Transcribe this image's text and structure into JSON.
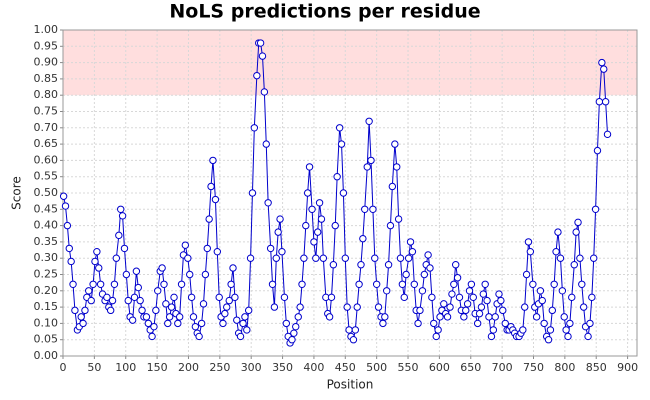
{
  "chart_data": {
    "type": "line",
    "title": "NoLS predictions per residue",
    "x_label": "Position",
    "y_label": "Score",
    "xlim": [
      0,
      915
    ],
    "ylim": [
      0,
      1
    ],
    "xticks": [
      0,
      50,
      100,
      150,
      200,
      250,
      300,
      350,
      400,
      450,
      500,
      550,
      600,
      650,
      700,
      750,
      800,
      850,
      900
    ],
    "yticks": [
      {
        "value": 0,
        "label": "0.00"
      },
      {
        "value": 0.05,
        "label": "0.05"
      },
      {
        "value": 0.1,
        "label": "0.10"
      },
      {
        "value": 0.15,
        "label": "0.15"
      },
      {
        "value": 0.2,
        "label": "0.20"
      },
      {
        "value": 0.25,
        "label": "0.25"
      },
      {
        "value": 0.3,
        "label": "0.30"
      },
      {
        "value": 0.35,
        "label": "0.35"
      },
      {
        "value": 0.4,
        "label": "0.40"
      },
      {
        "value": 0.45,
        "label": "0.45"
      },
      {
        "value": 0.5,
        "label": "0.50"
      },
      {
        "value": 0.55,
        "label": "0.55"
      },
      {
        "value": 0.6,
        "label": "0.60"
      },
      {
        "value": 0.65,
        "label": "0.65"
      },
      {
        "value": 0.7,
        "label": "0.70"
      },
      {
        "value": 0.75,
        "label": "0.75"
      },
      {
        "value": 0.8,
        "label": "0.80"
      },
      {
        "value": 0.85,
        "label": "0.85"
      },
      {
        "value": 0.9,
        "label": "0.90"
      },
      {
        "value": 0.95,
        "label": "0.95"
      },
      {
        "value": 1,
        "label": "1.00"
      }
    ],
    "grid": true,
    "highlight_range": [
      0.8,
      1
    ],
    "highlight_color": "#ffdede",
    "color": "#0000cc",
    "x": [
      1,
      4,
      7,
      10,
      13,
      16,
      19,
      23,
      26,
      29,
      32,
      35,
      38,
      41,
      45,
      48,
      51,
      54,
      57,
      60,
      63,
      67,
      70,
      73,
      76,
      79,
      82,
      85,
      89,
      92,
      95,
      98,
      101,
      104,
      107,
      111,
      114,
      117,
      120,
      123,
      126,
      129,
      133,
      136,
      139,
      142,
      145,
      148,
      151,
      155,
      158,
      161,
      164,
      167,
      170,
      173,
      177,
      180,
      183,
      186,
      189,
      192,
      195,
      199,
      202,
      205,
      208,
      211,
      214,
      217,
      221,
      224,
      227,
      230,
      233,
      236,
      239,
      243,
      246,
      249,
      252,
      255,
      258,
      261,
      265,
      268,
      271,
      274,
      277,
      280,
      283,
      287,
      290,
      293,
      296,
      299,
      302,
      305,
      309,
      312,
      315,
      318,
      321,
      324,
      327,
      331,
      334,
      337,
      340,
      343,
      346,
      349,
      353,
      356,
      359,
      362,
      365,
      368,
      371,
      375,
      378,
      381,
      384,
      387,
      390,
      393,
      397,
      400,
      403,
      406,
      409,
      412,
      415,
      419,
      422,
      425,
      428,
      431,
      434,
      437,
      441,
      444,
      447,
      450,
      453,
      456,
      459,
      463,
      466,
      469,
      472,
      475,
      478,
      481,
      485,
      488,
      491,
      494,
      497,
      500,
      503,
      507,
      510,
      513,
      516,
      519,
      522,
      525,
      529,
      532,
      535,
      538,
      541,
      544,
      547,
      551,
      554,
      557,
      560,
      563,
      566,
      569,
      573,
      576,
      579,
      582,
      585,
      588,
      591,
      595,
      598,
      601,
      604,
      607,
      610,
      613,
      617,
      620,
      623,
      626,
      629,
      632,
      635,
      639,
      642,
      645,
      648,
      651,
      654,
      657,
      661,
      664,
      667,
      670,
      673,
      676,
      679,
      683,
      686,
      689,
      692,
      695,
      698,
      701,
      705,
      708,
      711,
      714,
      717,
      720,
      723,
      727,
      730,
      733,
      736,
      739,
      742,
      745,
      749,
      752,
      755,
      758,
      761,
      764,
      767,
      771,
      774,
      777,
      780,
      783,
      786,
      789,
      793,
      796,
      799,
      802,
      805,
      808,
      811,
      815,
      818,
      821,
      824,
      827,
      830,
      833,
      837,
      840,
      843,
      846,
      849,
      852,
      855,
      859,
      862,
      865,
      868
    ],
    "values": [
      0.49,
      0.46,
      0.4,
      0.33,
      0.29,
      0.22,
      0.14,
      0.08,
      0.09,
      0.12,
      0.1,
      0.14,
      0.18,
      0.2,
      0.17,
      0.22,
      0.29,
      0.32,
      0.27,
      0.22,
      0.19,
      0.17,
      0.18,
      0.15,
      0.14,
      0.17,
      0.22,
      0.3,
      0.37,
      0.45,
      0.43,
      0.33,
      0.25,
      0.17,
      0.12,
      0.11,
      0.18,
      0.26,
      0.21,
      0.17,
      0.14,
      0.12,
      0.12,
      0.1,
      0.08,
      0.06,
      0.09,
      0.14,
      0.2,
      0.26,
      0.27,
      0.22,
      0.16,
      0.1,
      0.12,
      0.15,
      0.18,
      0.13,
      0.1,
      0.12,
      0.22,
      0.31,
      0.34,
      0.3,
      0.25,
      0.18,
      0.12,
      0.09,
      0.07,
      0.06,
      0.1,
      0.16,
      0.25,
      0.33,
      0.42,
      0.52,
      0.6,
      0.48,
      0.32,
      0.18,
      0.12,
      0.1,
      0.13,
      0.15,
      0.17,
      0.22,
      0.27,
      0.18,
      0.11,
      0.07,
      0.06,
      0.1,
      0.12,
      0.08,
      0.14,
      0.3,
      0.5,
      0.7,
      0.86,
      0.96,
      0.96,
      0.92,
      0.81,
      0.65,
      0.47,
      0.33,
      0.22,
      0.15,
      0.3,
      0.38,
      0.42,
      0.32,
      0.18,
      0.1,
      0.06,
      0.04,
      0.05,
      0.07,
      0.09,
      0.12,
      0.15,
      0.22,
      0.3,
      0.4,
      0.5,
      0.58,
      0.45,
      0.35,
      0.3,
      0.38,
      0.47,
      0.42,
      0.3,
      0.18,
      0.13,
      0.12,
      0.18,
      0.28,
      0.4,
      0.55,
      0.7,
      0.65,
      0.5,
      0.3,
      0.15,
      0.08,
      0.06,
      0.05,
      0.08,
      0.15,
      0.22,
      0.28,
      0.36,
      0.45,
      0.58,
      0.72,
      0.6,
      0.45,
      0.3,
      0.22,
      0.15,
      0.12,
      0.1,
      0.12,
      0.2,
      0.28,
      0.4,
      0.52,
      0.65,
      0.58,
      0.42,
      0.3,
      0.22,
      0.18,
      0.25,
      0.3,
      0.35,
      0.32,
      0.22,
      0.14,
      0.1,
      0.14,
      0.2,
      0.25,
      0.28,
      0.31,
      0.27,
      0.18,
      0.1,
      0.06,
      0.08,
      0.12,
      0.14,
      0.16,
      0.13,
      0.12,
      0.15,
      0.19,
      0.22,
      0.28,
      0.24,
      0.18,
      0.14,
      0.12,
      0.14,
      0.16,
      0.2,
      0.22,
      0.18,
      0.13,
      0.1,
      0.13,
      0.15,
      0.19,
      0.22,
      0.17,
      0.12,
      0.06,
      0.08,
      0.12,
      0.16,
      0.19,
      0.17,
      0.14,
      0.1,
      0.08,
      0.08,
      0.09,
      0.08,
      0.07,
      0.06,
      0.06,
      0.07,
      0.08,
      0.15,
      0.25,
      0.35,
      0.32,
      0.22,
      0.15,
      0.12,
      0.16,
      0.2,
      0.17,
      0.1,
      0.06,
      0.05,
      0.08,
      0.14,
      0.22,
      0.32,
      0.38,
      0.3,
      0.2,
      0.12,
      0.08,
      0.06,
      0.1,
      0.18,
      0.28,
      0.38,
      0.41,
      0.3,
      0.22,
      0.15,
      0.09,
      0.06,
      0.1,
      0.18,
      0.3,
      0.45,
      0.63,
      0.78,
      0.9,
      0.88,
      0.78,
      0.68
    ]
  }
}
